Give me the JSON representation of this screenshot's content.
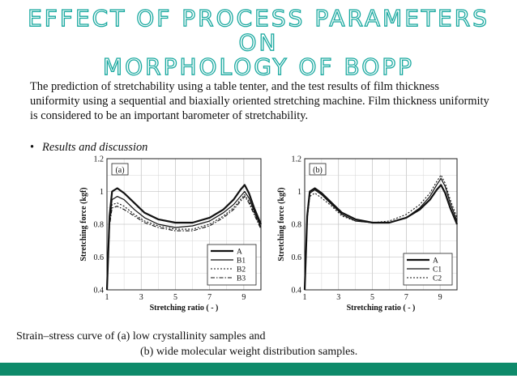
{
  "slide": {
    "title_line1": "EFFECT OF PROCESS PARAMETERS",
    "title_line2": "ON",
    "title_line3": "MORPHOLOGY OF BOPP",
    "paragraph": "The prediction of stretchability using a table tenter, and the test results of film thickness uniformity using a sequential and biaxially oriented stretching machine. Film thickness uniformity is considered to be an important barometer of stretchability.",
    "bullet": "Results and discussion",
    "caption_line1": "Strain–stress curve of (a) low crystallinity samples and",
    "caption_line2": "(b) wide molecular weight distribution samples.",
    "accent_color": "#1aa9a0",
    "bar_color": "#0e8a6a"
  },
  "chart_data": [
    {
      "type": "line",
      "panel_label": "(a)",
      "xlabel": "Stretching ratio ( - )",
      "ylabel": "Stretching force (kgf)",
      "xlim": [
        1,
        10
      ],
      "ylim": [
        0.4,
        1.2
      ],
      "xticks": [
        1,
        3,
        5,
        7,
        9
      ],
      "yticks": [
        0.4,
        0.6,
        0.8,
        1,
        1.2
      ],
      "ytick_labels": [
        "0.4",
        "0.6",
        "0.8",
        "1",
        "1.2"
      ],
      "legend": "bottom-right",
      "series": [
        {
          "name": "A",
          "style": "solid-bold",
          "x": [
            1.0,
            1.15,
            1.3,
            1.6,
            2.0,
            2.6,
            3.2,
            4.0,
            5.0,
            6.0,
            7.0,
            7.8,
            8.4,
            8.8,
            9.05,
            9.3,
            9.6,
            10.0
          ],
          "y": [
            0.4,
            0.85,
            1.0,
            1.02,
            0.99,
            0.93,
            0.87,
            0.83,
            0.81,
            0.81,
            0.84,
            0.89,
            0.95,
            1.01,
            1.04,
            0.99,
            0.9,
            0.8
          ]
        },
        {
          "name": "B1",
          "style": "solid",
          "x": [
            1.0,
            1.15,
            1.3,
            1.6,
            2.0,
            2.6,
            3.2,
            4.0,
            5.0,
            6.0,
            7.0,
            7.8,
            8.4,
            8.8,
            9.05,
            9.3,
            9.6,
            10.0
          ],
          "y": [
            0.4,
            0.82,
            0.95,
            0.97,
            0.95,
            0.89,
            0.84,
            0.8,
            0.78,
            0.79,
            0.82,
            0.87,
            0.92,
            0.97,
            1.0,
            0.96,
            0.88,
            0.78
          ]
        },
        {
          "name": "B2",
          "style": "dotted",
          "x": [
            1.0,
            1.15,
            1.3,
            1.6,
            2.0,
            2.6,
            3.2,
            4.0,
            5.0,
            6.0,
            7.0,
            7.8,
            8.4,
            8.8,
            9.05,
            9.3,
            9.6,
            10.0
          ],
          "y": [
            0.4,
            0.8,
            0.92,
            0.93,
            0.91,
            0.86,
            0.82,
            0.79,
            0.77,
            0.77,
            0.8,
            0.85,
            0.9,
            0.95,
            0.98,
            0.94,
            0.87,
            0.78
          ]
        },
        {
          "name": "B3",
          "style": "dash-dot",
          "x": [
            1.0,
            1.15,
            1.3,
            1.6,
            2.0,
            2.6,
            3.2,
            4.0,
            5.0,
            6.0,
            7.0,
            7.8,
            8.4,
            8.8,
            9.05,
            9.3,
            9.6,
            10.0
          ],
          "y": [
            0.4,
            0.79,
            0.9,
            0.91,
            0.89,
            0.85,
            0.81,
            0.78,
            0.76,
            0.76,
            0.79,
            0.84,
            0.89,
            0.94,
            0.97,
            0.93,
            0.86,
            0.77
          ]
        }
      ]
    },
    {
      "type": "line",
      "panel_label": "(b)",
      "xlabel": "Stretching ratio ( - )",
      "ylabel": "Stretching force (kgf)",
      "xlim": [
        1,
        10
      ],
      "ylim": [
        0.4,
        1.2
      ],
      "xticks": [
        1,
        3,
        5,
        7,
        9
      ],
      "yticks": [
        0.4,
        0.6,
        0.8,
        1,
        1.2
      ],
      "ytick_labels": [
        "0.4",
        "0.6",
        "0.8",
        "1",
        "1.2"
      ],
      "legend": "bottom-right",
      "series": [
        {
          "name": "A",
          "style": "solid-bold",
          "x": [
            1.0,
            1.15,
            1.3,
            1.6,
            2.0,
            2.6,
            3.2,
            4.0,
            5.0,
            6.0,
            7.0,
            7.8,
            8.4,
            8.8,
            9.05,
            9.3,
            9.6,
            10.0
          ],
          "y": [
            0.4,
            0.85,
            1.0,
            1.02,
            0.99,
            0.93,
            0.87,
            0.83,
            0.81,
            0.81,
            0.84,
            0.89,
            0.95,
            1.01,
            1.04,
            0.99,
            0.9,
            0.8
          ]
        },
        {
          "name": "C1",
          "style": "solid",
          "x": [
            1.0,
            1.15,
            1.3,
            1.6,
            2.0,
            2.6,
            3.2,
            4.0,
            5.0,
            6.0,
            7.0,
            7.8,
            8.4,
            8.8,
            9.05,
            9.3,
            9.6,
            10.0
          ],
          "y": [
            0.4,
            0.84,
            0.99,
            1.01,
            0.98,
            0.92,
            0.86,
            0.82,
            0.81,
            0.81,
            0.84,
            0.9,
            0.97,
            1.04,
            1.08,
            1.03,
            0.93,
            0.82
          ]
        },
        {
          "name": "C2",
          "style": "dotted",
          "x": [
            1.0,
            1.15,
            1.3,
            1.6,
            2.0,
            2.6,
            3.2,
            4.0,
            5.0,
            6.0,
            7.0,
            7.8,
            8.4,
            8.8,
            9.05,
            9.3,
            9.6,
            10.0
          ],
          "y": [
            0.4,
            0.83,
            0.97,
            0.99,
            0.96,
            0.91,
            0.85,
            0.82,
            0.81,
            0.82,
            0.86,
            0.92,
            0.99,
            1.06,
            1.1,
            1.05,
            0.95,
            0.84
          ]
        }
      ]
    }
  ]
}
